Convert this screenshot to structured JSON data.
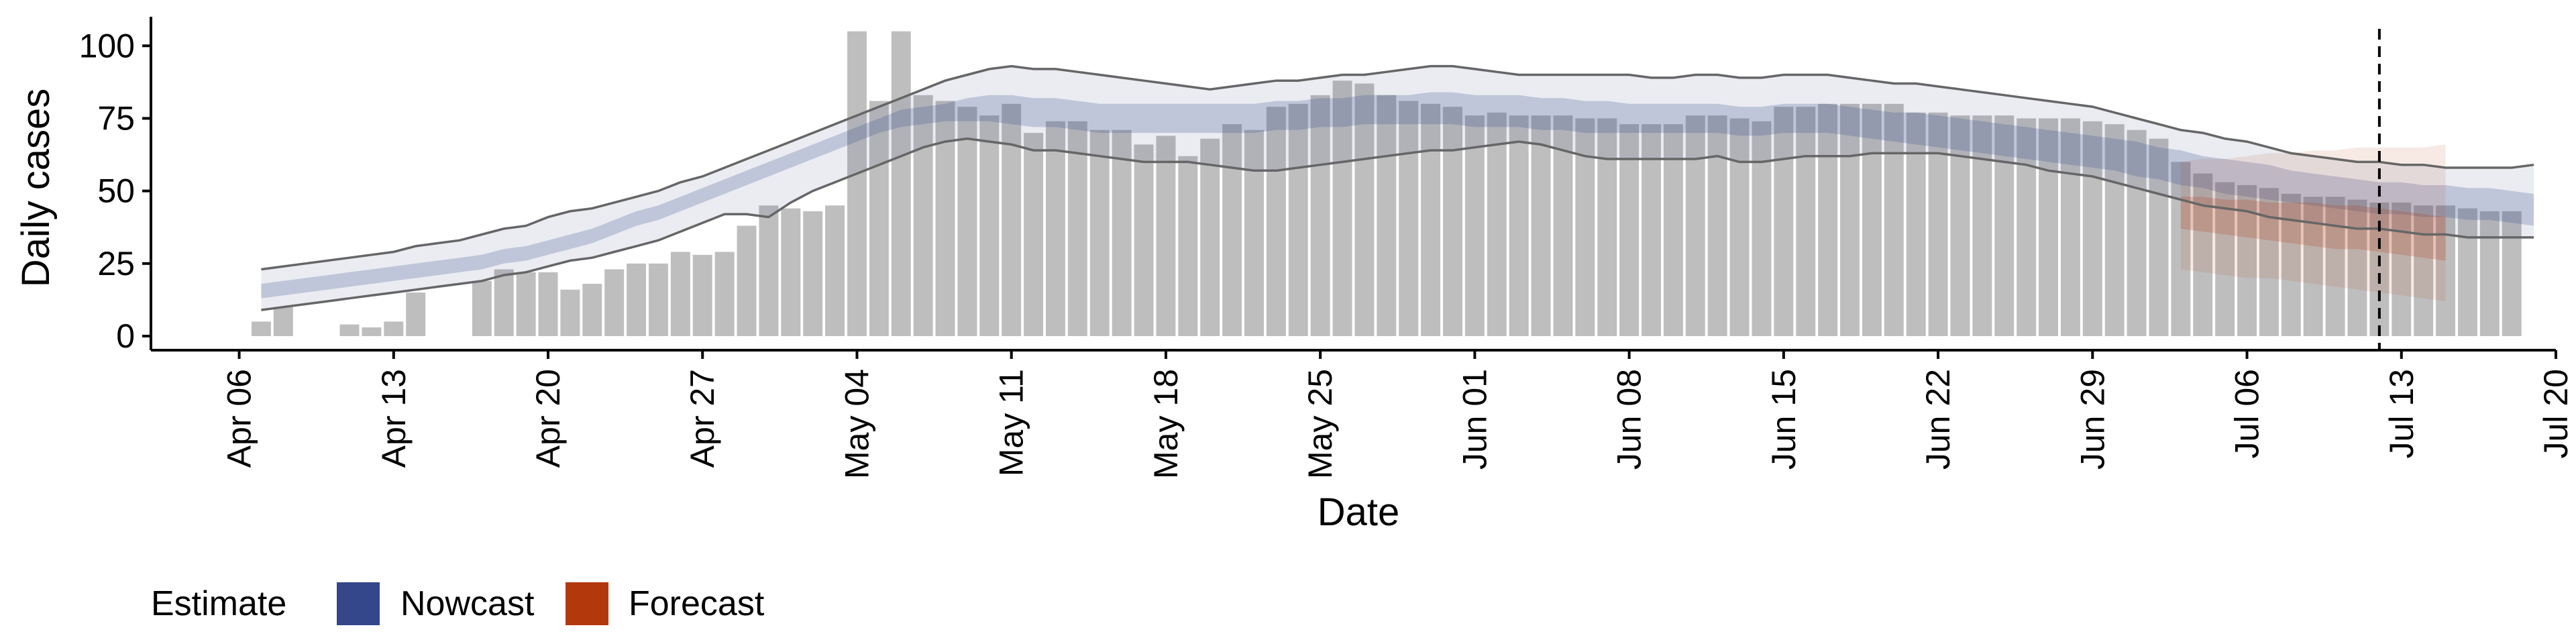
{
  "chart_data": {
    "type": "bar",
    "xlabel": "Date",
    "ylabel": "Daily cases",
    "ylim": [
      0,
      110
    ],
    "yticks": [
      0,
      25,
      50,
      75,
      100
    ],
    "x_ticks": [
      {
        "date": "2020-04-06",
        "label": "Apr 06"
      },
      {
        "date": "2020-04-13",
        "label": "Apr 13"
      },
      {
        "date": "2020-04-20",
        "label": "Apr 20"
      },
      {
        "date": "2020-04-27",
        "label": "Apr 27"
      },
      {
        "date": "2020-05-04",
        "label": "May 04"
      },
      {
        "date": "2020-05-11",
        "label": "May 11"
      },
      {
        "date": "2020-05-18",
        "label": "May 18"
      },
      {
        "date": "2020-05-25",
        "label": "May 25"
      },
      {
        "date": "2020-06-01",
        "label": "Jun 01"
      },
      {
        "date": "2020-06-08",
        "label": "Jun 08"
      },
      {
        "date": "2020-06-15",
        "label": "Jun 15"
      },
      {
        "date": "2020-06-22",
        "label": "Jun 22"
      },
      {
        "date": "2020-06-29",
        "label": "Jun 29"
      },
      {
        "date": "2020-07-06",
        "label": "Jul 06"
      },
      {
        "date": "2020-07-13",
        "label": "Jul 13"
      },
      {
        "date": "2020-07-20",
        "label": "Jul 20"
      }
    ],
    "x_range": [
      "2020-04-02",
      "2020-07-20"
    ],
    "grid": false,
    "vline_date": "2020-07-12",
    "colors": {
      "bars": "#bebebe",
      "nowcast": "#3c4f8c",
      "forecast": "#b53c16",
      "outer_line": "#666666",
      "vline": "#000000"
    },
    "legend": {
      "position": "bottom-left",
      "title": "Estimate",
      "entries": [
        {
          "label": "Nowcast",
          "color": "#34478a"
        },
        {
          "label": "Forecast",
          "color": "#b3390d"
        }
      ]
    },
    "bars": {
      "start": "2020-04-07",
      "values": [
        5,
        10,
        0,
        0,
        4,
        3,
        5,
        15,
        0,
        0,
        19,
        23,
        22,
        22,
        16,
        18,
        23,
        25,
        25,
        29,
        28,
        29,
        38,
        45,
        44,
        43,
        45,
        105,
        81,
        105,
        83,
        81,
        79,
        76,
        80,
        70,
        74,
        74,
        71,
        71,
        66,
        69,
        62,
        68,
        73,
        71,
        79,
        80,
        83,
        88,
        87,
        83,
        81,
        80,
        79,
        76,
        77,
        76,
        76,
        76,
        75,
        75,
        73,
        73,
        73,
        76,
        76,
        75,
        74,
        79,
        79,
        80,
        80,
        80,
        80,
        77,
        77,
        76,
        76,
        76,
        75,
        75,
        75,
        74,
        73,
        71,
        68,
        60,
        56,
        53,
        52,
        51,
        49,
        48,
        48,
        47,
        46,
        46,
        45,
        45,
        44,
        43,
        43
      ]
    },
    "series": [
      {
        "name": "Nowcast",
        "start": "2020-04-07",
        "outer_upper": [
          23,
          24,
          25,
          26,
          27,
          28,
          29,
          31,
          32,
          33,
          35,
          37,
          38,
          41,
          43,
          44,
          46,
          48,
          50,
          53,
          55,
          58,
          61,
          64,
          67,
          70,
          73,
          76,
          79,
          82,
          85,
          88,
          90,
          92,
          93,
          92,
          92,
          91,
          90,
          89,
          88,
          87,
          86,
          85,
          86,
          87,
          88,
          88,
          89,
          90,
          90,
          91,
          92,
          93,
          93,
          92,
          91,
          90,
          90,
          90,
          90,
          90,
          90,
          89,
          89,
          90,
          90,
          89,
          89,
          90,
          90,
          90,
          89,
          88,
          87,
          87,
          86,
          85,
          84,
          83,
          82,
          81,
          80,
          79,
          77,
          75,
          73,
          71,
          70,
          68,
          67,
          65,
          63,
          62,
          61,
          60,
          60,
          59,
          59,
          58,
          58,
          58,
          58,
          59
        ],
        "inner_upper": [
          18,
          19,
          20,
          21,
          22,
          23,
          24,
          25,
          26,
          27,
          28,
          30,
          31,
          33,
          35,
          37,
          40,
          43,
          45,
          48,
          51,
          54,
          57,
          60,
          63,
          66,
          69,
          72,
          75,
          78,
          79,
          80,
          82,
          83,
          83,
          82,
          82,
          81,
          80,
          80,
          80,
          80,
          80,
          80,
          80,
          80,
          81,
          81,
          82,
          82,
          83,
          83,
          83,
          84,
          84,
          83,
          83,
          83,
          82,
          82,
          81,
          81,
          80,
          80,
          80,
          80,
          80,
          79,
          79,
          80,
          80,
          80,
          79,
          78,
          77,
          77,
          76,
          75,
          74,
          73,
          72,
          71,
          70,
          69,
          68,
          67,
          65,
          64,
          62,
          61,
          60,
          59,
          57,
          56,
          55,
          54,
          53,
          53,
          52,
          52,
          51,
          51,
          50,
          49
        ],
        "inner_lower": [
          13,
          14,
          15,
          16,
          17,
          18,
          19,
          20,
          21,
          22,
          23,
          25,
          26,
          28,
          30,
          32,
          35,
          38,
          40,
          43,
          46,
          49,
          52,
          55,
          58,
          61,
          64,
          67,
          70,
          72,
          73,
          74,
          74,
          74,
          73,
          72,
          72,
          71,
          70,
          70,
          70,
          70,
          70,
          70,
          70,
          70,
          71,
          71,
          72,
          72,
          73,
          73,
          73,
          73,
          73,
          72,
          72,
          72,
          71,
          71,
          70,
          70,
          70,
          70,
          70,
          70,
          70,
          69,
          69,
          70,
          70,
          70,
          69,
          68,
          67,
          66,
          65,
          64,
          63,
          62,
          61,
          60,
          59,
          58,
          57,
          55,
          54,
          52,
          51,
          49,
          48,
          47,
          46,
          45,
          44,
          43,
          42,
          42,
          41,
          41,
          40,
          40,
          39,
          38
        ],
        "outer_lower": [
          9,
          10,
          11,
          12,
          13,
          14,
          15,
          16,
          17,
          18,
          19,
          21,
          22,
          24,
          26,
          27,
          29,
          31,
          33,
          36,
          39,
          42,
          42,
          41,
          46,
          50,
          53,
          56,
          59,
          62,
          65,
          67,
          68,
          67,
          66,
          64,
          64,
          63,
          62,
          61,
          60,
          60,
          60,
          59,
          58,
          57,
          57,
          58,
          59,
          60,
          61,
          62,
          63,
          64,
          64,
          65,
          66,
          67,
          66,
          64,
          62,
          61,
          61,
          61,
          61,
          61,
          62,
          60,
          60,
          61,
          62,
          62,
          62,
          63,
          63,
          63,
          63,
          62,
          61,
          60,
          59,
          57,
          56,
          55,
          53,
          51,
          49,
          47,
          45,
          44,
          43,
          41,
          40,
          39,
          38,
          37,
          37,
          36,
          35,
          35,
          34,
          34,
          34,
          34
        ]
      },
      {
        "name": "Forecast",
        "start": "2020-07-03",
        "outer_upper": [
          60,
          61,
          61,
          62,
          63,
          63,
          64,
          64,
          65,
          65,
          65,
          65,
          66
        ],
        "inner_upper": [
          48,
          48,
          47,
          47,
          46,
          46,
          46,
          45,
          45,
          44,
          43,
          42,
          41
        ],
        "inner_lower": [
          37,
          36,
          35,
          34,
          33,
          32,
          31,
          30,
          30,
          29,
          28,
          27,
          26
        ],
        "outer_lower": [
          23,
          22,
          21,
          20,
          20,
          19,
          18,
          17,
          16,
          15,
          14,
          13,
          12
        ]
      }
    ]
  }
}
